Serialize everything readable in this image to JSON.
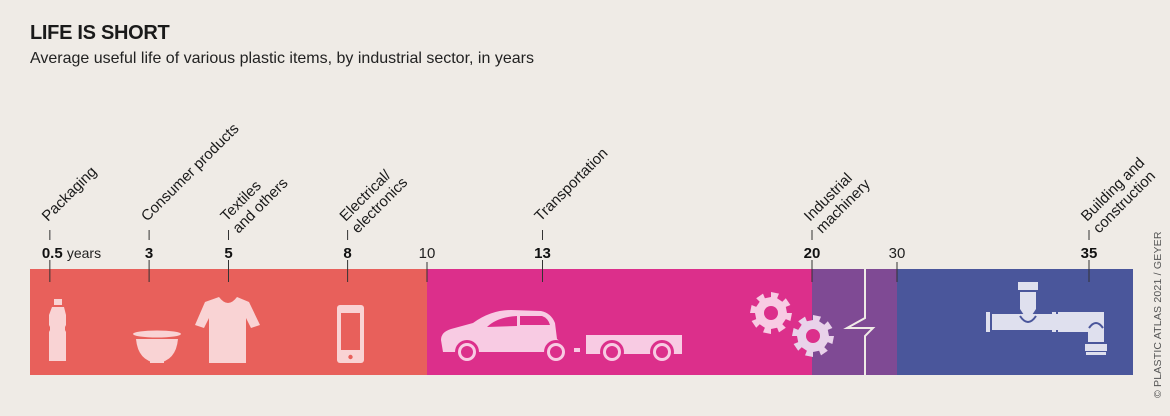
{
  "header": {
    "title": "LIFE IS SHORT",
    "subtitle": "Average useful life of various plastic items, by industrial sector, in years"
  },
  "credit": "© PLASTIC ATLAS 2021 / GEYER",
  "chart_data": {
    "type": "timeline",
    "title": "LIFE IS SHORT",
    "subtitle": "Average useful life of various plastic items, by industrial sector, in years",
    "unit_label": "years",
    "axis_breaks": [
      {
        "from": 20,
        "to": 30
      }
    ],
    "axis_range": [
      0,
      40
    ],
    "scale_ticks": [
      10,
      30
    ],
    "segments": [
      {
        "name": "0-10 years",
        "from": 0,
        "to": 10,
        "color": "#e8605b"
      },
      {
        "name": "10-20 years",
        "from": 10,
        "to": 20,
        "color": "#dc2f8b"
      },
      {
        "name": "20-30 years (axis break)",
        "from": 20,
        "to": 30,
        "color": "#7f4a94"
      },
      {
        "name": "30+ years",
        "from": 30,
        "to": 40,
        "color": "#4a569b"
      }
    ],
    "sectors": [
      {
        "label": [
          "Packaging"
        ],
        "value": 0.5,
        "value_label": "0.5",
        "icon": "bottle-icon"
      },
      {
        "label": [
          "Consumer products"
        ],
        "value": 3,
        "value_label": "3",
        "icon": "bowl-icon"
      },
      {
        "label": [
          "Textiles",
          "and others"
        ],
        "value": 5,
        "value_label": "5",
        "icon": "tshirt-icon"
      },
      {
        "label": [
          "Electrical/",
          "electronics"
        ],
        "value": 8,
        "value_label": "8",
        "icon": "smartphone-icon"
      },
      {
        "label": [
          "Transportation"
        ],
        "value": 13,
        "value_label": "13",
        "icon": "car-trailer-icon"
      },
      {
        "label": [
          "Industrial",
          "machinery"
        ],
        "value": 20,
        "value_label": "20",
        "icon": "gears-icon"
      },
      {
        "label": [
          "Building and",
          "construction"
        ],
        "value": 35,
        "value_label": "35",
        "icon": "pipes-icon"
      }
    ]
  }
}
